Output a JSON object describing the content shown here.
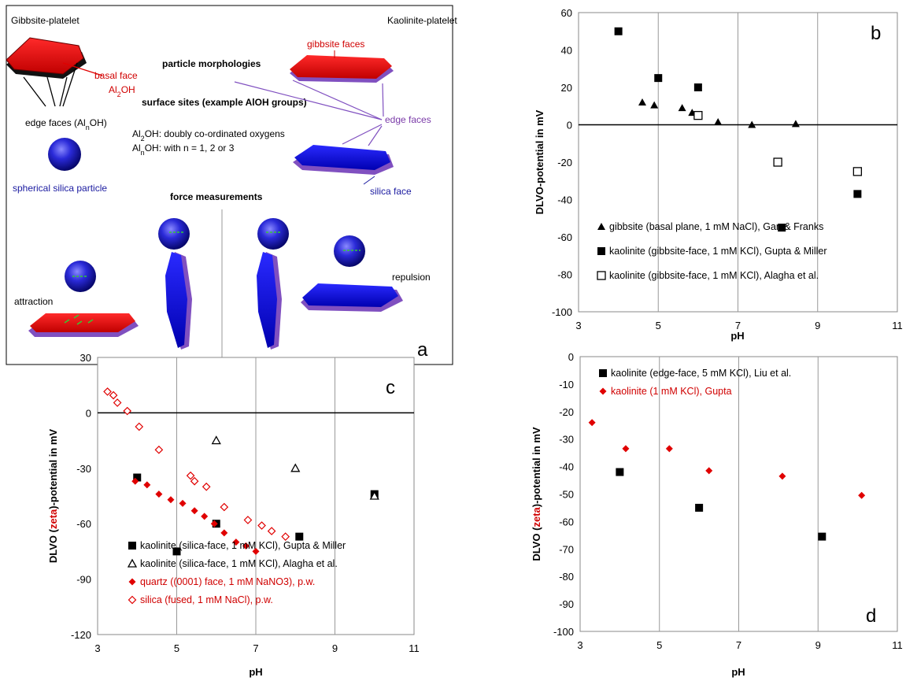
{
  "panel_a": {
    "letter": "a",
    "gibbsite_title": "Gibbsite-platelet",
    "kaolinite_title": "Kaolinite-platelet",
    "basal_face": "basal face",
    "basal_formula": "Al2OH",
    "edge_faces_gibbsite": "edge faces (AlnOH)",
    "spherical_silica": "spherical silica particle",
    "particle_morphologies": "particle morphologies",
    "surface_sites": "surface sites (example AlOH groups)",
    "al2oh_desc": "Al2OH: doubly co-ordinated oxygens",
    "alnoh_desc": "AlnOH: with n = 1, 2 or 3",
    "gibbsite_faces": "gibbsite faces",
    "edge_faces": "edge faces",
    "silica_face": "silica face",
    "force_measurements": "force measurements",
    "attraction": "attraction",
    "repulsion": "repulsion",
    "colors": {
      "red": "#e00000",
      "blue": "#1010e0",
      "purple": "#8050c0",
      "label_red": "#d00000",
      "label_blue": "#1a1aa0",
      "label_purple": "#7a3aa8"
    }
  },
  "chart_data": [
    {
      "panel": "b",
      "type": "scatter",
      "xlabel": "pH",
      "ylabel": "DLVO-potential in mV",
      "xlim": [
        3,
        11
      ],
      "ylim": [
        -100,
        60
      ],
      "xticks": [
        3,
        5,
        7,
        9,
        11
      ],
      "yticks": [
        60,
        40,
        20,
        0,
        -20,
        -40,
        -60,
        -80,
        -100
      ],
      "grid": "vertical",
      "legend_position": "bottom-left",
      "series": [
        {
          "name": "gibbsite (basal plane, 1 mM NaCl), Gan & Franks",
          "marker": "triangle-filled",
          "color": "#000000",
          "points": [
            [
              4.6,
              12
            ],
            [
              4.9,
              10.5
            ],
            [
              5.6,
              9
            ],
            [
              5.85,
              6.5
            ],
            [
              6.5,
              1.5
            ],
            [
              7.35,
              0
            ],
            [
              8.45,
              0.5
            ]
          ]
        },
        {
          "name": "kaolinite (gibbsite-face, 1 mM KCl), Gupta & Miller",
          "marker": "square-filled",
          "color": "#000000",
          "points": [
            [
              4,
              50
            ],
            [
              5,
              25
            ],
            [
              6,
              20
            ],
            [
              8.1,
              -55
            ],
            [
              10,
              -37
            ]
          ]
        },
        {
          "name": "kaolinite (gibbsite-face, 1 mM KCl), Alagha et al.",
          "marker": "square-open",
          "color": "#000000",
          "points": [
            [
              6,
              5
            ],
            [
              8,
              -20
            ],
            [
              10,
              -25
            ]
          ]
        }
      ]
    },
    {
      "panel": "c",
      "type": "scatter",
      "xlabel": "pH",
      "ylabel_prefix": "DLVO (",
      "ylabel_zeta": "zeta",
      "ylabel_suffix": ")-potential in mV",
      "xlim": [
        3,
        11
      ],
      "ylim": [
        -120,
        30
      ],
      "xticks": [
        3,
        5,
        7,
        9,
        11
      ],
      "yticks": [
        30,
        0,
        -30,
        -60,
        -90,
        -120
      ],
      "grid": "vertical",
      "legend_position": "bottom-left",
      "series": [
        {
          "name": "kaolinite (silica-face, 1 mM KCl), Gupta & Miller",
          "marker": "square-filled",
          "color": "#000000",
          "points": [
            [
              4,
              -35
            ],
            [
              5,
              -75
            ],
            [
              6,
              -60
            ],
            [
              8.1,
              -67
            ],
            [
              10,
              -44
            ]
          ]
        },
        {
          "name": "kaolinite (silica-face, 1 mM KCl), Alagha et al.",
          "marker": "triangle-open",
          "color": "#000000",
          "points": [
            [
              6,
              -15
            ],
            [
              8,
              -30
            ],
            [
              10,
              -45
            ]
          ]
        },
        {
          "name": "quartz ((0001) face, 1 mM NaNO3), p.w.",
          "marker": "diamond-filled",
          "color": "#e00000",
          "points": [
            [
              3.95,
              -37
            ],
            [
              4.25,
              -39
            ],
            [
              4.55,
              -44
            ],
            [
              4.85,
              -47
            ],
            [
              5.15,
              -49
            ],
            [
              5.45,
              -53
            ],
            [
              5.7,
              -56
            ],
            [
              5.95,
              -60
            ],
            [
              6.2,
              -65
            ],
            [
              6.5,
              -70
            ],
            [
              6.75,
              -72
            ],
            [
              7.0,
              -75
            ]
          ]
        },
        {
          "name": "silica (fused, 1 mM NaCl), p.w.",
          "marker": "diamond-open",
          "color": "#e00000",
          "points": [
            [
              3.25,
              11.5
            ],
            [
              3.4,
              9.5
            ],
            [
              3.5,
              5.5
            ],
            [
              3.75,
              1
            ],
            [
              4.05,
              -7.5
            ],
            [
              4.55,
              -20
            ],
            [
              5.35,
              -34
            ],
            [
              5.45,
              -37
            ],
            [
              5.75,
              -40
            ],
            [
              6.2,
              -51
            ],
            [
              6.8,
              -58
            ],
            [
              7.15,
              -61
            ],
            [
              7.4,
              -64
            ],
            [
              7.75,
              -67
            ]
          ]
        }
      ]
    },
    {
      "panel": "d",
      "type": "scatter",
      "xlabel": "pH",
      "ylabel_prefix": "DLVO (",
      "ylabel_zeta": "zeta",
      "ylabel_suffix": ")-potential in mV",
      "xlim": [
        3,
        11
      ],
      "ylim": [
        -100,
        0
      ],
      "xticks": [
        3,
        5,
        7,
        9,
        11
      ],
      "yticks": [
        0,
        -10,
        -20,
        -30,
        -40,
        -50,
        -60,
        -70,
        -80,
        -90,
        -100
      ],
      "grid": "vertical",
      "legend_position": "top-left",
      "series": [
        {
          "name": "kaolinite (edge-face, 5 mM KCl), Liu et al.",
          "marker": "square-filled",
          "color": "#000000",
          "points": [
            [
              4,
              -42
            ],
            [
              6,
              -55
            ],
            [
              9.1,
              -65.5
            ]
          ]
        },
        {
          "name": "kaolinite (1 mM KCl), Gupta",
          "marker": "diamond-filled",
          "color": "#e00000",
          "points": [
            [
              3.3,
              -24
            ],
            [
              4.15,
              -33.5
            ],
            [
              5.25,
              -33.5
            ],
            [
              6.25,
              -41.5
            ],
            [
              8.1,
              -43.5
            ],
            [
              10.1,
              -50.5
            ]
          ]
        }
      ]
    }
  ]
}
